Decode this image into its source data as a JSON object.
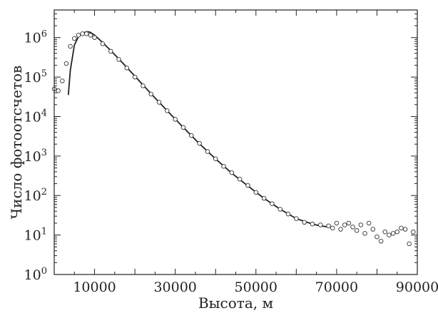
{
  "chart_data": {
    "type": "scatter",
    "title": "",
    "xlabel": "Высота, м",
    "ylabel": "Число фотоотсчетов",
    "x_scale": "linear",
    "y_scale": "log",
    "xlim": [
      0,
      90000
    ],
    "ylim": [
      1,
      5000000
    ],
    "x_ticks": [
      10000,
      30000,
      50000,
      70000,
      90000
    ],
    "x_tick_labels": [
      "10000",
      "30000",
      "50000",
      "70000",
      "90000"
    ],
    "y_ticks": [
      1,
      10,
      100,
      1000,
      10000,
      100000,
      1000000
    ],
    "y_tick_labels": [
      {
        "base": "10",
        "exp": "0"
      },
      {
        "base": "10",
        "exp": "1"
      },
      {
        "base": "10",
        "exp": "2"
      },
      {
        "base": "10",
        "exp": "3"
      },
      {
        "base": "10",
        "exp": "4"
      },
      {
        "base": "10",
        "exp": "5"
      },
      {
        "base": "10",
        "exp": "6"
      }
    ],
    "grid": false,
    "legend": "none",
    "series": [
      {
        "style": "open-circles",
        "x": [
          0,
          1000,
          2000,
          3000,
          4000,
          5000,
          6000,
          7000,
          8000,
          9000,
          10000,
          12000,
          14000,
          16000,
          18000,
          20000,
          22000,
          24000,
          26000,
          28000,
          30000,
          32000,
          34000,
          36000,
          38000,
          40000,
          42000,
          44000,
          46000,
          48000,
          50000,
          52000,
          54000,
          56000,
          58000,
          60000,
          62000,
          64000,
          66000,
          68000,
          69000,
          70000,
          71000,
          72000,
          73000,
          74000,
          75000,
          76000,
          77000,
          78000,
          79000,
          80000,
          81000,
          82000,
          83000,
          84000,
          85000,
          86000,
          87000,
          88000,
          89000
        ],
        "y": [
          50000,
          45000,
          80000,
          220000,
          600000,
          950000,
          1150000,
          1250000,
          1250000,
          1150000,
          1000000,
          700000,
          450000,
          280000,
          170000,
          100000,
          60000,
          37000,
          23000,
          14000,
          8500,
          5300,
          3300,
          2100,
          1300,
          850,
          550,
          380,
          260,
          180,
          120,
          85,
          62,
          45,
          34,
          26,
          21,
          19,
          18,
          17,
          15,
          20,
          14,
          18,
          20,
          16,
          13,
          18,
          11,
          20,
          14,
          9,
          7,
          12,
          10,
          11,
          12,
          15,
          14,
          6,
          12
        ]
      },
      {
        "style": "solid-line",
        "x": [
          3500,
          4000,
          5000,
          6000,
          7000,
          8000,
          8500,
          9000,
          10000,
          12000,
          14000,
          16000,
          18000,
          20000,
          24000,
          28000,
          32000,
          36000,
          40000,
          44000,
          48000,
          52000,
          56000,
          60000,
          64000,
          66000,
          68000
        ],
        "y": [
          35000,
          150000,
          650000,
          1050000,
          1300000,
          1400000,
          1400000,
          1350000,
          1150000,
          750000,
          470000,
          290000,
          175000,
          105000,
          38000,
          14000,
          5300,
          2050,
          850,
          370,
          175,
          85,
          45,
          26,
          19,
          17,
          16
        ]
      }
    ]
  }
}
